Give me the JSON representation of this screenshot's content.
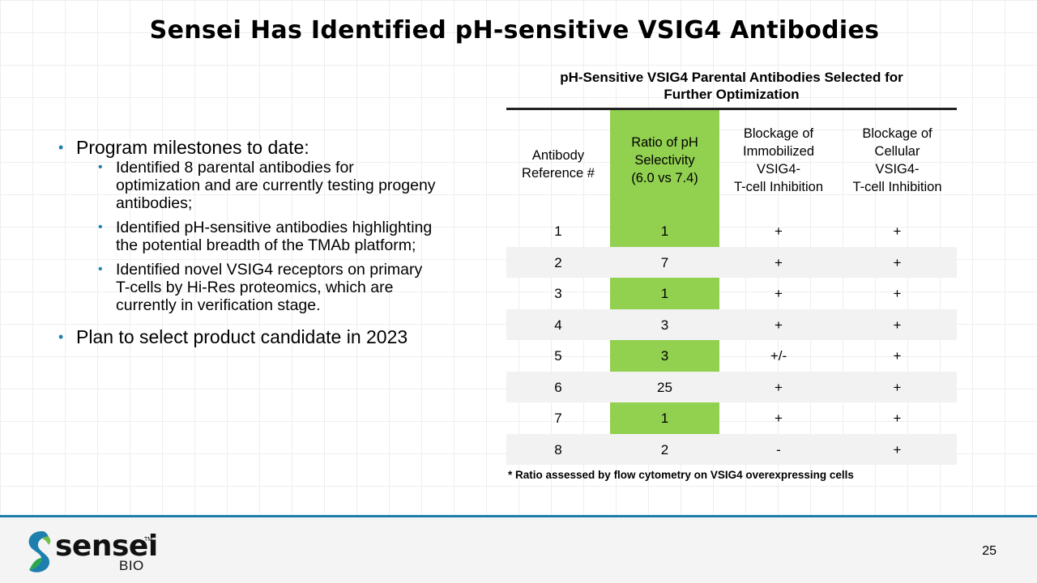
{
  "title": "Sensei Has Identified pH-sensitive VSIG4 Antibodies",
  "bullets": [
    {
      "text": "Program milestones to date:",
      "sub": [
        "Identified 8 parental antibodies for optimization and are currently testing progeny antibodies;",
        "Identified pH-sensitive antibodies highlighting the potential breadth of the TMAb platform;",
        "Identified novel VSIG4 receptors on primary T-cells by Hi-Res proteomics, which are currently in verification stage."
      ]
    },
    {
      "text": "Plan to select product candidate in 2023"
    }
  ],
  "table": {
    "title_line1": "pH-Sensitive VSIG4 Parental Antibodies Selected for",
    "title_line2": "Further Optimization",
    "headers": [
      [
        "Antibody",
        "Reference #"
      ],
      [
        "Ratio of pH",
        "Selectivity",
        "(6.0 vs 7.4)"
      ],
      [
        "Blockage of",
        "Immobilized",
        "VSIG4-",
        "T-cell Inhibition"
      ],
      [
        "Blockage of",
        "Cellular",
        "VSIG4-",
        "T-cell Inhibition"
      ]
    ],
    "rows": [
      [
        "1",
        "1",
        "+",
        "+"
      ],
      [
        "2",
        "7",
        "+",
        "+"
      ],
      [
        "3",
        "1",
        "+",
        "+"
      ],
      [
        "4",
        "3",
        "+",
        "+"
      ],
      [
        "5",
        "3",
        "+/-",
        "+"
      ],
      [
        "6",
        "25",
        "+",
        "+"
      ],
      [
        "7",
        "1",
        "+",
        "+"
      ],
      [
        "8",
        "2",
        "-",
        "+"
      ]
    ],
    "footnote": "* Ratio assessed by flow cytometry on VSIG4 overexpressing cells",
    "highlight_color": "#92d050"
  },
  "footer": {
    "logo_word": "sensei",
    "logo_tm": "TM",
    "logo_sub": "BIO",
    "page_number": "25"
  },
  "colors": {
    "accent": "#1b7ea8",
    "highlight": "#92d050"
  }
}
